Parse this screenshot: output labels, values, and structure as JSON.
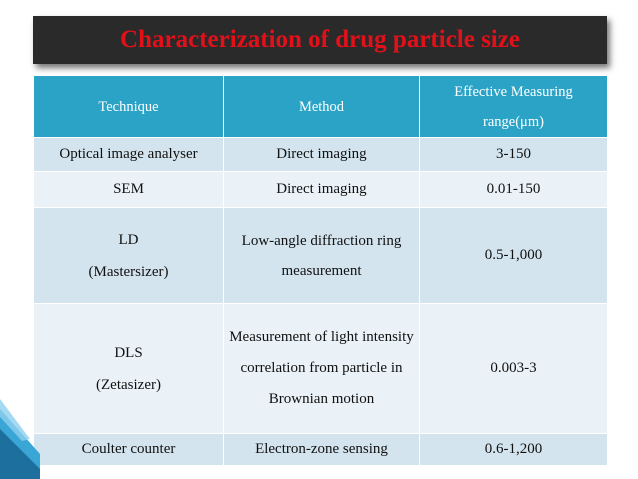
{
  "title": "Characterization of drug particle size",
  "table": {
    "headers": [
      "Technique",
      "Method",
      "Effective Measuring range(μm)"
    ],
    "rows": [
      {
        "technique": "Optical image analyser",
        "method": "Direct imaging",
        "range": "3-150"
      },
      {
        "technique": "SEM",
        "method": "Direct imaging",
        "range": "0.01-150"
      },
      {
        "technique": "LD (Mastersizer)",
        "method": "Low-angle diffraction ring measurement",
        "range": "0.5-1,000"
      },
      {
        "technique": "DLS (Zetasizer)",
        "method": "Measurement of light intensity correlation from particle in Brownian motion",
        "range": "0.003-3"
      },
      {
        "technique": "Coulter counter",
        "method": "Electron-zone sensing",
        "range": "0.6-1,200"
      }
    ]
  },
  "colors": {
    "title_bar": "#2a2a2a",
    "title_text": "#e3101a",
    "header_bg": "#2ba3c6",
    "row_dark": "#d3e4ee",
    "row_light": "#eaf2f7"
  }
}
